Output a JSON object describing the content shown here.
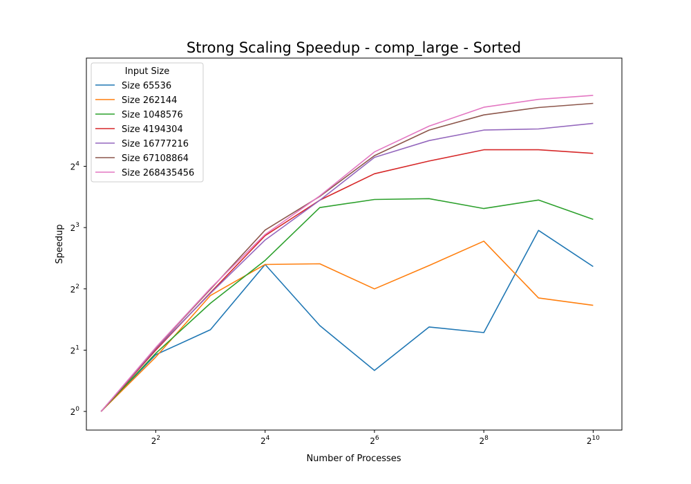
{
  "chart_data": {
    "type": "line",
    "title": "Strong Scaling Speedup - comp_large - Sorted",
    "xlabel": "Number of Processes",
    "ylabel": "Speedup",
    "x_scale": "log2",
    "y_scale": "log2",
    "xlim": [
      1.66,
      1474
    ],
    "ylim": [
      0.81,
      54.4
    ],
    "x_ticks": [
      {
        "base": "2",
        "exp": "2",
        "value": 4
      },
      {
        "base": "2",
        "exp": "4",
        "value": 16
      },
      {
        "base": "2",
        "exp": "6",
        "value": 64
      },
      {
        "base": "2",
        "exp": "8",
        "value": 256
      },
      {
        "base": "2",
        "exp": "10",
        "value": 1024
      }
    ],
    "y_ticks": [
      {
        "base": "2",
        "exp": "0",
        "value": 1
      },
      {
        "base": "2",
        "exp": "1",
        "value": 2
      },
      {
        "base": "2",
        "exp": "2",
        "value": 4
      },
      {
        "base": "2",
        "exp": "3",
        "value": 8
      },
      {
        "base": "2",
        "exp": "4",
        "value": 16
      }
    ],
    "legend_title": "Input Size",
    "legend_position": "top-left",
    "x": [
      2,
      4,
      8,
      16,
      32,
      64,
      128,
      256,
      512,
      1024
    ],
    "series": [
      {
        "name": "Size 65536",
        "color": "#1f77b4",
        "values": [
          1.0,
          1.9,
          2.52,
          5.27,
          2.64,
          1.59,
          2.6,
          2.44,
          7.75,
          5.15
        ]
      },
      {
        "name": "Size 262144",
        "color": "#ff7f0e",
        "values": [
          1.0,
          1.85,
          3.71,
          5.27,
          5.31,
          4.0,
          5.21,
          6.86,
          3.61,
          3.32
        ]
      },
      {
        "name": "Size 1048576",
        "color": "#2ca02c",
        "values": [
          1.0,
          1.93,
          3.4,
          5.52,
          10.03,
          10.99,
          11.1,
          9.92,
          10.92,
          8.78
        ]
      },
      {
        "name": "Size 4194304",
        "color": "#d62728",
        "values": [
          1.0,
          2.0,
          3.83,
          7.3,
          10.91,
          14.7,
          16.98,
          19.28,
          19.28,
          18.52
        ]
      },
      {
        "name": "Size 16777216",
        "color": "#9467bd",
        "values": [
          1.0,
          2.03,
          3.8,
          6.95,
          10.9,
          17.7,
          21.4,
          24.1,
          24.4,
          26.0
        ]
      },
      {
        "name": "Size 67108864",
        "color": "#8c564b",
        "values": [
          1.0,
          2.05,
          3.98,
          7.78,
          11.38,
          18.05,
          24.1,
          28.6,
          31.1,
          32.6
        ]
      },
      {
        "name": "Size 268435456",
        "color": "#e377c2",
        "values": [
          1.0,
          2.06,
          4.02,
          7.4,
          11.45,
          18.82,
          25.2,
          31.2,
          34.1,
          35.7
        ]
      }
    ]
  }
}
